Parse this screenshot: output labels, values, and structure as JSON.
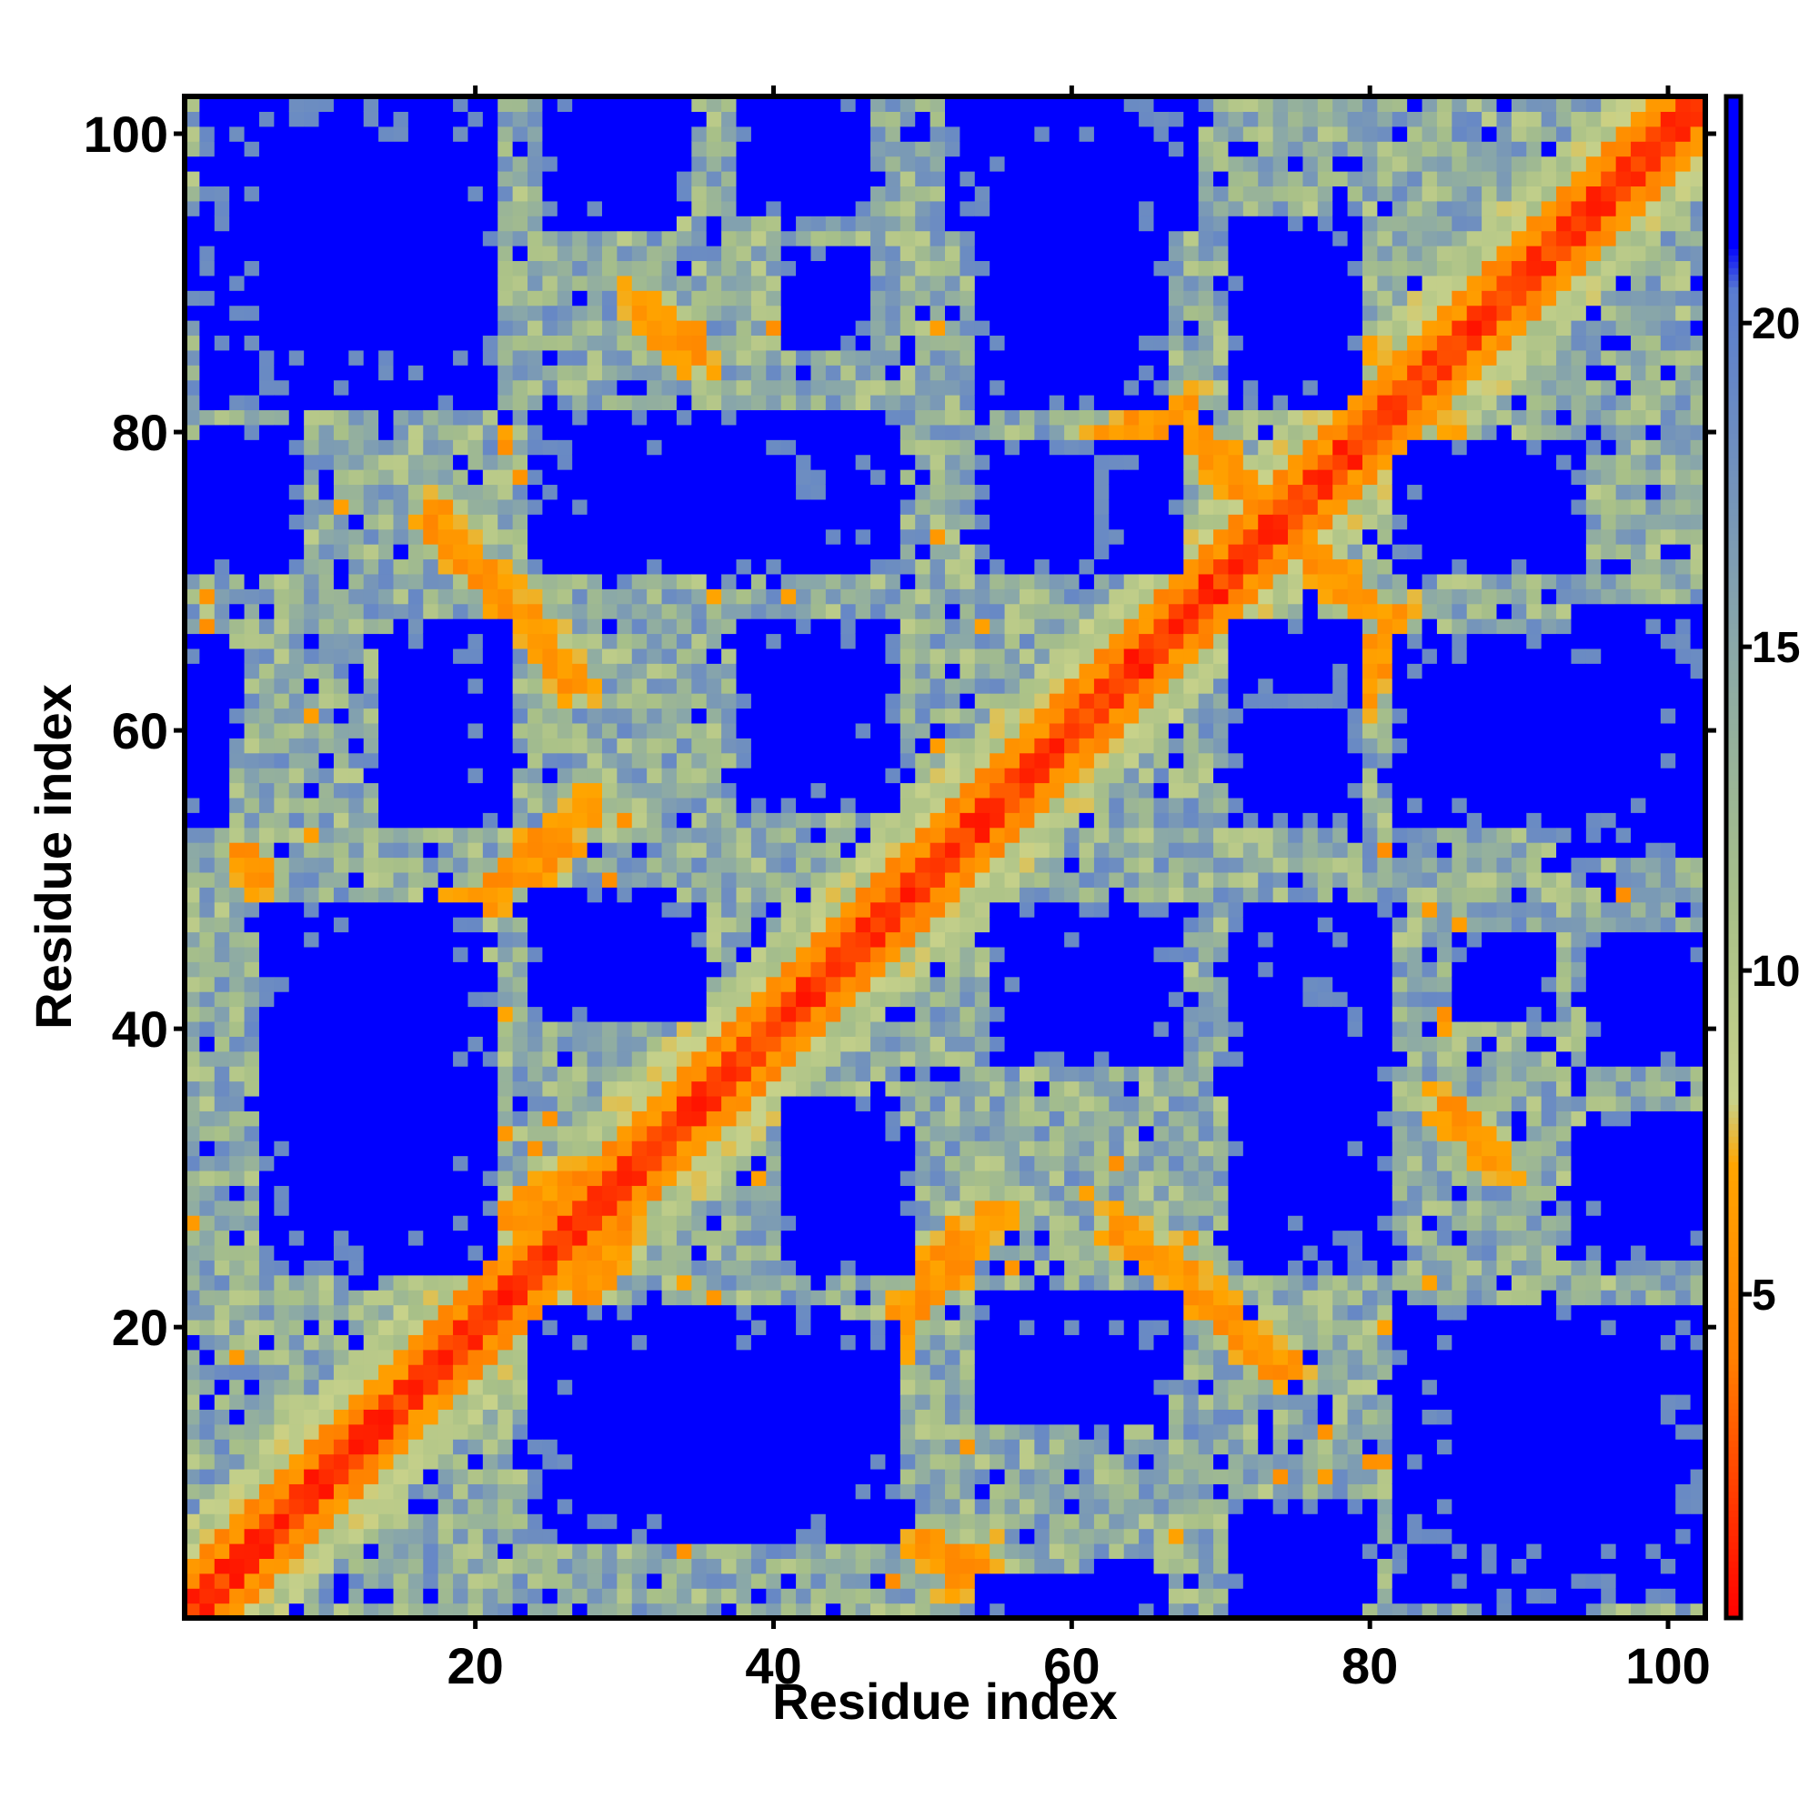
{
  "chart_data": {
    "type": "heatmap",
    "title": "",
    "xlabel": "Residue index",
    "ylabel": "Residue index",
    "n_residues": 102,
    "xlim": [
      1,
      102
    ],
    "ylim": [
      1,
      102
    ],
    "x_ticks": [
      20,
      40,
      60,
      80,
      100
    ],
    "y_ticks": [
      20,
      40,
      60,
      80,
      100
    ],
    "colorbar": {
      "ticks": [
        5,
        10,
        15,
        20
      ],
      "range": [
        0,
        23.5
      ],
      "stops": [
        {
          "value": 0,
          "color": "#ff0000"
        },
        {
          "value": 4,
          "color": "#ff7f00"
        },
        {
          "value": 7,
          "color": "#ffa500"
        },
        {
          "value": 8,
          "color": "#c8d28a"
        },
        {
          "value": 11,
          "color": "#a8c088"
        },
        {
          "value": 15,
          "color": "#8aa8a8"
        },
        {
          "value": 18,
          "color": "#6f8fbf"
        },
        {
          "value": 20.5,
          "color": "#5a7dd0"
        },
        {
          "value": 21.2,
          "color": "#0000ff"
        },
        {
          "value": 23.5,
          "color": "#0000ff"
        }
      ]
    },
    "matrix_description": "Symmetric pairwise residue distance map: red diagonal (near 0), orange contacts along the diagonal and at off-diagonal strands, blue blocks (>21) for distant segment pairs.",
    "blue_blocks": [
      {
        "x": [
          4,
          21
        ],
        "y": [
          83,
          102
        ]
      },
      {
        "x": [
          25,
          44
        ],
        "y": [
          71,
          79
        ]
      },
      {
        "x": [
          54,
          62
        ],
        "y": [
          71,
          79
        ]
      },
      {
        "x": [
          63,
          67
        ],
        "y": [
          72,
          78
        ]
      },
      {
        "x": [
          71,
          79
        ],
        "y": [
          82,
          94
        ]
      },
      {
        "x": [
          84,
          94
        ],
        "y": [
          71,
          79
        ]
      },
      {
        "x": [
          14,
          20
        ],
        "y": [
          54,
          66
        ]
      },
      {
        "x": [
          38,
          46
        ],
        "y": [
          55,
          67
        ]
      },
      {
        "x": [
          71,
          79
        ],
        "y": [
          55,
          67
        ]
      },
      {
        "x": [
          82,
          102
        ],
        "y": [
          54,
          66
        ]
      },
      {
        "x": [
          6,
          20
        ],
        "y": [
          24,
          48
        ]
      },
      {
        "x": [
          24,
          33
        ],
        "y": [
          41,
          49
        ]
      },
      {
        "x": [
          55,
          67
        ],
        "y": [
          39,
          48
        ]
      },
      {
        "x": [
          71,
          81
        ],
        "y": [
          24,
          48
        ]
      },
      {
        "x": [
          24,
          44
        ],
        "y": [
          6,
          21
        ]
      },
      {
        "x": [
          54,
          62
        ],
        "y": [
          17,
          22
        ]
      },
      {
        "x": [
          63,
          67
        ],
        "y": [
          17,
          22
        ]
      },
      {
        "x": [
          82,
          102
        ],
        "y": [
          2,
          21
        ]
      },
      {
        "x": [
          41,
          48
        ],
        "y": [
          26,
          35
        ]
      },
      {
        "x": [
          95,
          102
        ],
        "y": [
          26,
          34
        ]
      },
      {
        "x": [
          52,
          68
        ],
        "y": [
          94,
          102
        ]
      },
      {
        "x": [
          25,
          33
        ],
        "y": [
          94,
          102
        ]
      },
      {
        "x": [
          1,
          3
        ],
        "y": [
          54,
          66
        ]
      },
      {
        "x": [
          1,
          3
        ],
        "y": [
          71,
          79
        ]
      },
      {
        "x": [
          41,
          46
        ],
        "y": [
          86,
          92
        ]
      },
      {
        "x": [
          55,
          63
        ],
        "y": [
          86,
          92
        ]
      },
      {
        "x": [
          1,
          5
        ],
        "y": [
          88,
          94
        ]
      },
      {
        "x": [
          71,
          80
        ],
        "y": [
          2,
          8
        ]
      },
      {
        "x": [
          61,
          65
        ],
        "y": [
          1,
          4
        ]
      },
      {
        "x": [
          95,
          102
        ],
        "y": [
          38,
          46
        ]
      }
    ],
    "contact_strands": [
      {
        "from": [
          17,
          74
        ],
        "to": [
          27,
          63
        ],
        "value": 6
      },
      {
        "from": [
          74,
          17
        ],
        "to": [
          63,
          27
        ],
        "value": 6
      },
      {
        "from": [
          19,
          48
        ],
        "to": [
          28,
          55
        ],
        "value": 6
      },
      {
        "from": [
          48,
          19
        ],
        "to": [
          55,
          28
        ],
        "value": 6
      },
      {
        "from": [
          48,
          20
        ],
        "to": [
          53,
          27
        ],
        "value": 6
      },
      {
        "from": [
          20,
          48
        ],
        "to": [
          27,
          53
        ],
        "value": 6
      },
      {
        "from": [
          66,
          25
        ],
        "to": [
          75,
          17
        ],
        "value": 6
      },
      {
        "from": [
          25,
          66
        ],
        "to": [
          17,
          75
        ],
        "value": 6
      },
      {
        "from": [
          4,
          52
        ],
        "to": [
          6,
          50
        ],
        "value": 6
      },
      {
        "from": [
          52,
          4
        ],
        "to": [
          50,
          6
        ],
        "value": 6
      },
      {
        "from": [
          52,
          3
        ],
        "to": [
          54,
          5
        ],
        "value": 6
      },
      {
        "from": [
          68,
          80
        ],
        "to": [
          73,
          75
        ],
        "value": 6
      },
      {
        "from": [
          80,
          68
        ],
        "to": [
          75,
          73
        ],
        "value": 6
      },
      {
        "from": [
          79,
          62
        ],
        "to": [
          82,
          68
        ],
        "value": 6
      },
      {
        "from": [
          62,
          79
        ],
        "to": [
          68,
          82
        ],
        "value": 6
      },
      {
        "from": [
          86,
          80
        ],
        "to": [
          88,
          74
        ],
        "value": 6
      },
      {
        "from": [
          80,
          86
        ],
        "to": [
          74,
          88
        ],
        "value": 6
      },
      {
        "from": [
          26,
          20
        ],
        "to": [
          30,
          26
        ],
        "value": 6
      },
      {
        "from": [
          20,
          26
        ],
        "to": [
          26,
          30
        ],
        "value": 6
      },
      {
        "from": [
          85,
          35
        ],
        "to": [
          89,
          31
        ],
        "value": 6
      },
      {
        "from": [
          35,
          85
        ],
        "to": [
          31,
          89
        ],
        "value": 6
      }
    ]
  }
}
